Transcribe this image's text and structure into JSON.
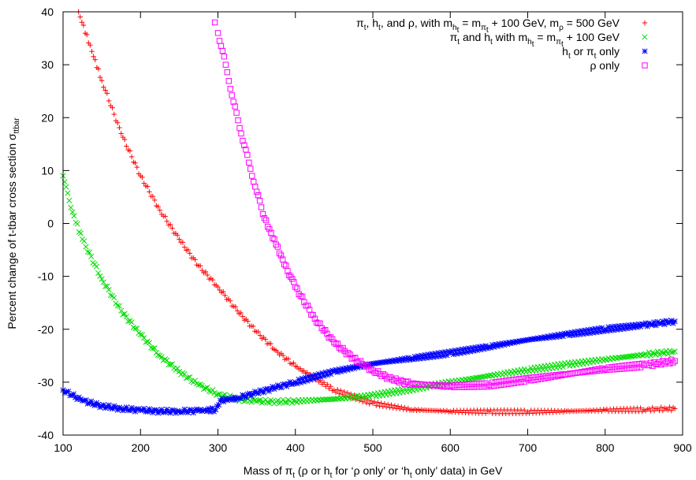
{
  "chart_data": {
    "type": "scatter",
    "title": "",
    "xlabel": "Mass of π_t (ρ or h_t for ‘ρ only’ or ‘h_t only’ data) in GeV",
    "ylabel": "Percent change of t-tbar cross section σ_ttbar",
    "xlim": [
      100,
      900
    ],
    "ylim": [
      -40,
      40
    ],
    "x_ticks": [
      "100",
      "200",
      "300",
      "400",
      "500",
      "600",
      "700",
      "800",
      "900"
    ],
    "y_ticks": [
      "-40",
      "-30",
      "-20",
      "-10",
      "0",
      "10",
      "20",
      "30",
      "40"
    ],
    "grid": false,
    "legend_position": "top-right",
    "series": [
      {
        "name": "π_t, h_t, and ρ, with m_h_t = m_π_t + 100 GeV, m_ρ = 500 GeV",
        "color": "#ff0000",
        "marker": "plus",
        "x": [
          120,
          150,
          175,
          200,
          225,
          250,
          275,
          300,
          325,
          350,
          375,
          400,
          450,
          500,
          550,
          600,
          650,
          700,
          750,
          800,
          850,
          890
        ],
        "y": [
          40,
          27,
          17,
          9,
          2.5,
          -3,
          -8,
          -12,
          -16.5,
          -20.5,
          -24,
          -27,
          -31.5,
          -34,
          -35.2,
          -35.5,
          -35.6,
          -35.6,
          -35.5,
          -35.3,
          -35.2,
          -35
        ]
      },
      {
        "name": "π_t and h_t with m_h_t = m_π_t + 100 GeV",
        "color": "#00dd00",
        "marker": "cross",
        "x": [
          100,
          110,
          125,
          150,
          175,
          200,
          225,
          250,
          275,
          300,
          325,
          350,
          375,
          400,
          450,
          500,
          550,
          600,
          650,
          700,
          750,
          800,
          850,
          890
        ],
        "y": [
          9,
          3,
          -3,
          -10.5,
          -16.5,
          -21,
          -25,
          -28,
          -30.5,
          -32.3,
          -33.2,
          -33.6,
          -33.7,
          -33.6,
          -33.2,
          -32.5,
          -31.3,
          -30,
          -28.8,
          -27.7,
          -26.7,
          -25.7,
          -24.8,
          -24.2
        ]
      },
      {
        "name": "h_t or π_t only",
        "color": "#0000ff",
        "marker": "star",
        "x": [
          100,
          125,
          150,
          175,
          200,
          225,
          250,
          275,
          297,
          303,
          325,
          350,
          375,
          400,
          450,
          500,
          550,
          600,
          650,
          700,
          750,
          800,
          850,
          890
        ],
        "y": [
          -31.5,
          -33.5,
          -34.5,
          -35,
          -35.3,
          -35.5,
          -35.5,
          -35.4,
          -35.2,
          -33.5,
          -33,
          -32,
          -31,
          -30,
          -28,
          -26.5,
          -25.5,
          -24.5,
          -23.3,
          -22,
          -21,
          -20,
          -19.2,
          -18.5
        ]
      },
      {
        "name": "ρ only",
        "color": "#ff00ff",
        "marker": "square",
        "x": [
          296,
          300,
          310,
          320,
          330,
          340,
          350,
          360,
          375,
          390,
          400,
          425,
          450,
          475,
          500,
          525,
          550,
          600,
          650,
          700,
          750,
          800,
          850,
          890
        ],
        "y": [
          38,
          36,
          30,
          23,
          17,
          11.5,
          6,
          1,
          -4,
          -9,
          -12,
          -18,
          -22.5,
          -25.5,
          -27.8,
          -29.5,
          -30.3,
          -30.8,
          -30.5,
          -29.5,
          -28.5,
          -27.5,
          -26.8,
          -26
        ]
      }
    ]
  }
}
